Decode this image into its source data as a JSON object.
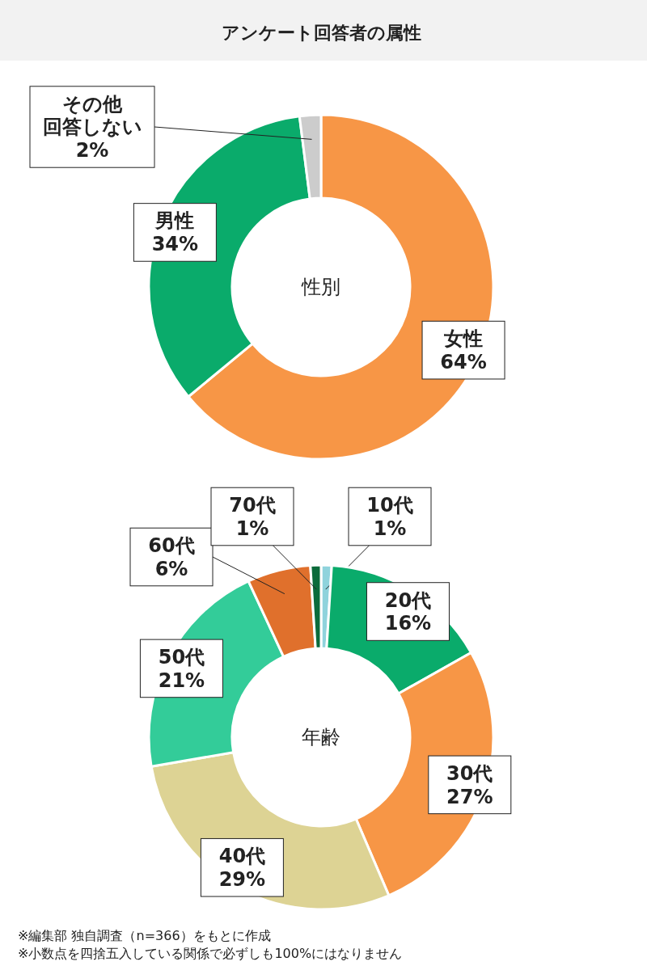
{
  "chart_data": [
    {
      "type": "donut",
      "title": "アンケート回答者の属性",
      "categories": [
        "女性",
        "男性",
        "その他回答しない"
      ],
      "values": [
        64,
        34,
        2
      ],
      "colors": [
        "#f79646",
        "#0aab6b",
        "#cccccc"
      ],
      "value_labels": [
        "64%",
        "34%",
        "2%"
      ],
      "legend": false,
      "annotations": [
        "性別"
      ]
    },
    {
      "type": "donut",
      "categories": [
        "10代",
        "20代",
        "30代",
        "40代",
        "50代",
        "60代",
        "70代"
      ],
      "values": [
        1,
        16,
        27,
        29,
        21,
        6,
        1
      ],
      "colors": [
        "#8fd3dc",
        "#0aab6b",
        "#f79646",
        "#ddd394",
        "#33cc99",
        "#e0702c",
        "#0b6b3b"
      ],
      "value_labels": [
        "1%",
        "16%",
        "27%",
        "29%",
        "21%",
        "6%",
        "1%"
      ],
      "legend": false,
      "annotations": [
        "年齢",
        "※編集部 独自調査（n=366）をもとに作成",
        "※小数点を四捨五入している関係で必ずしも100%にはなりません"
      ]
    }
  ]
}
